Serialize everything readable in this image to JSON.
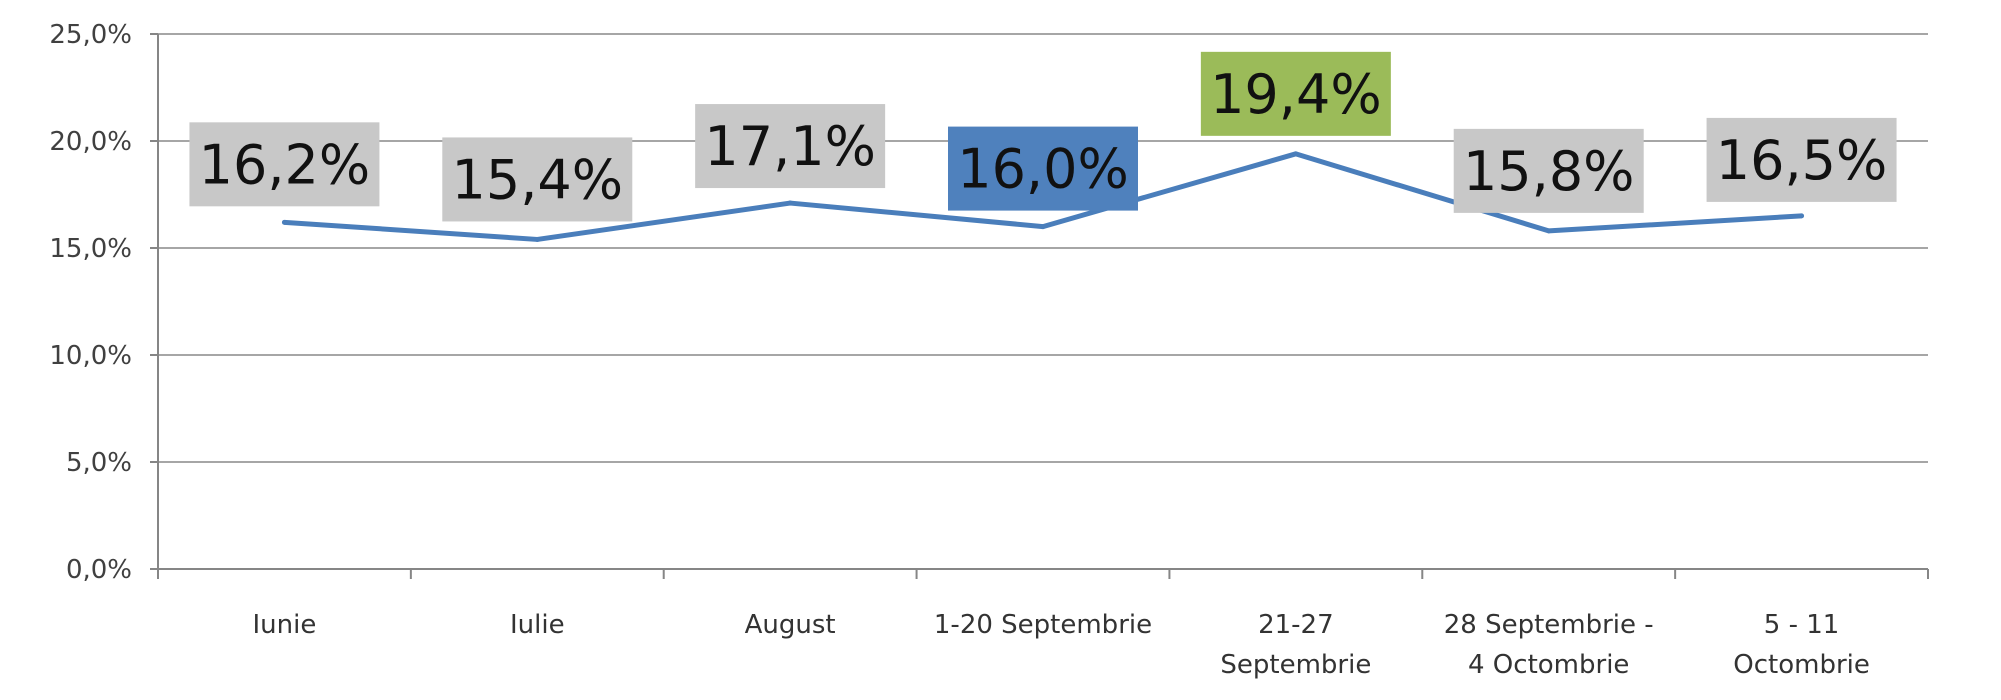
{
  "chart_data": {
    "type": "line",
    "categories": [
      [
        "Iunie"
      ],
      [
        "Iulie"
      ],
      [
        "August"
      ],
      [
        "1-20 Septembrie"
      ],
      [
        "21-27",
        "Septembrie"
      ],
      [
        "28 Septembrie -",
        "4 Octombrie"
      ],
      [
        "5 - 11",
        "Octombrie"
      ]
    ],
    "series": [
      {
        "values": [
          16.2,
          15.4,
          17.1,
          16.0,
          19.4,
          15.8,
          16.5
        ],
        "color": "#4a7ebb",
        "labels": [
          "16,2%",
          "15,4%",
          "17,1%",
          "16,0%",
          "19,4%",
          "15,8%",
          "16,5%"
        ],
        "label_backgrounds": [
          "#c8c8c8",
          "#c8c8c8",
          "#c8c8c8",
          "#4f81bd",
          "#9bbb59",
          "#c8c8c8",
          "#c8c8c8"
        ]
      }
    ],
    "ylim": [
      0,
      25
    ],
    "yticks": [
      0,
      5,
      10,
      15,
      20,
      25
    ],
    "ytick_labels": [
      "0,0%",
      "5,0%",
      "10,0%",
      "15,0%",
      "20,0%",
      "25,0%"
    ],
    "grid": true,
    "legend": "none",
    "colors": {
      "grid": "#a6a6a6",
      "axis": "#868686"
    }
  }
}
